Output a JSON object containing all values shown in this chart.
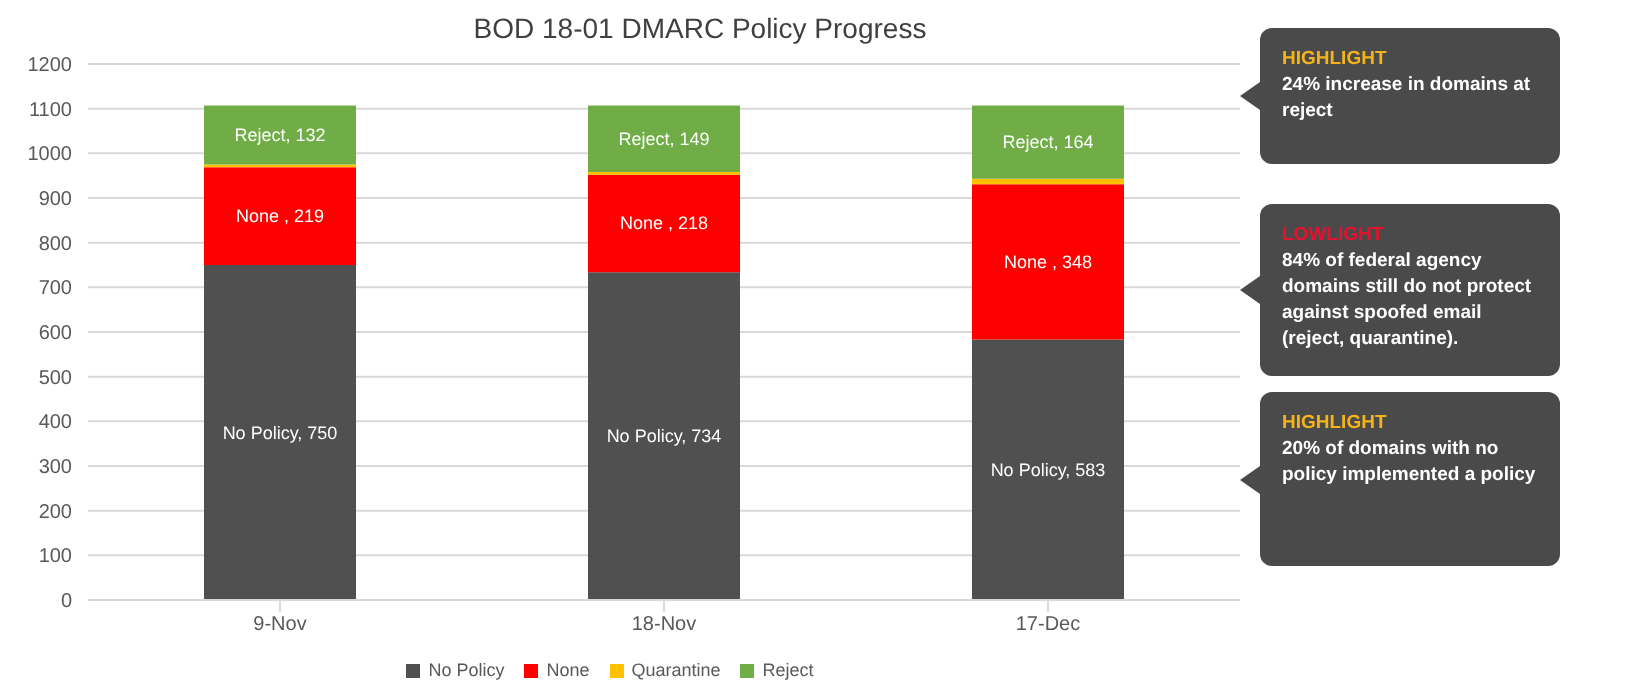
{
  "chart_data": {
    "type": "bar",
    "title": "BOD 18-01 DMARC Policy Progress",
    "categories": [
      "9-Nov",
      "18-Nov",
      "17-Dec"
    ],
    "stacked": true,
    "series": [
      {
        "name": "No Policy",
        "color": "#505050",
        "values": [
          750,
          734,
          583
        ],
        "value_labels": [
          "No Policy, 750",
          "No Policy, 734",
          "No Policy, 583"
        ]
      },
      {
        "name": "None",
        "color": "#ff0000",
        "values": [
          219,
          218,
          348
        ],
        "value_labels": [
          "None , 219",
          "None , 218",
          "None , 348"
        ]
      },
      {
        "name": "Quarantine",
        "color": "#ffc000",
        "values": [
          6,
          6,
          12
        ]
      },
      {
        "name": "Reject",
        "color": "#70ad47",
        "values": [
          132,
          149,
          164
        ],
        "value_labels": [
          "Reject, 132",
          "Reject, 149",
          "Reject, 164"
        ]
      }
    ],
    "ylim": [
      0,
      1200
    ],
    "yticks": [
      0,
      100,
      200,
      300,
      400,
      500,
      600,
      700,
      800,
      900,
      1000,
      1100,
      1200
    ],
    "grid": "y",
    "legend": "bottom",
    "annotations": [
      "HIGHLIGHT",
      "24% increase in domains at reject",
      "LOWLIGHT",
      "84% of federal agency domains still do not protect against spoofed email (reject, quarantine).",
      "HIGHLIGHT",
      "20% of domains with no policy implemented a policy"
    ]
  }
}
